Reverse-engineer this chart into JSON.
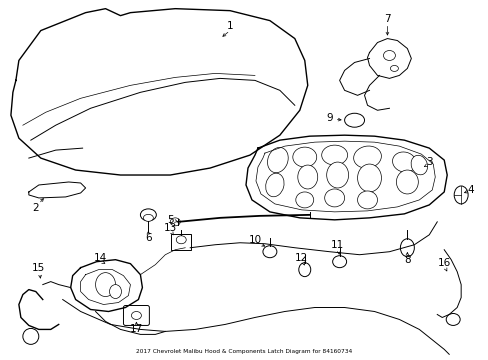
{
  "title": "2017 Chevrolet Malibu Hood & Components Latch Diagram for 84160734",
  "background_color": "#ffffff",
  "line_color": "#000000",
  "figsize": [
    4.89,
    3.6
  ],
  "dpi": 100
}
